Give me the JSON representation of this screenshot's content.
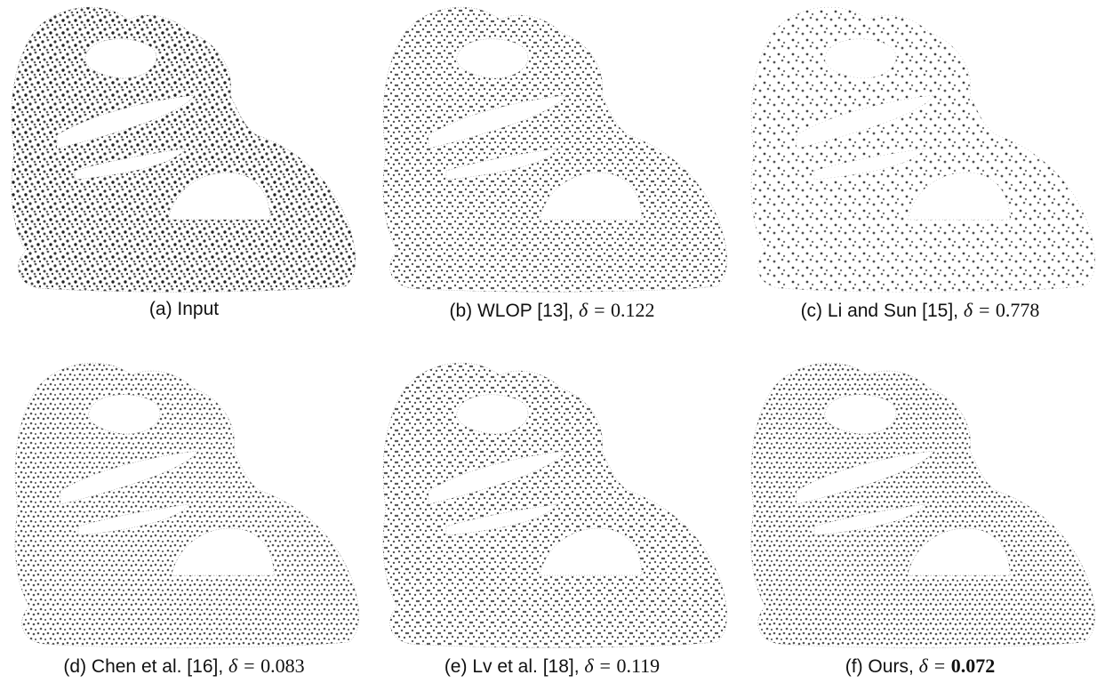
{
  "figure": {
    "panels": [
      {
        "label": "(a) Input"
      },
      {
        "label": "(b) WLOP [13],",
        "delta_lhs": "δ =",
        "delta": "0.122"
      },
      {
        "label": "(c) Li and Sun [15],",
        "delta_lhs": "δ =",
        "delta": "0.778"
      },
      {
        "label": "(d) Chen et al. [16],",
        "delta_lhs": "δ =",
        "delta": "0.083"
      },
      {
        "label": "(e) Lv et al. [18],",
        "delta_lhs": "δ =",
        "delta": "0.119"
      },
      {
        "label": "(f) Ours,",
        "delta_lhs": "δ =",
        "delta": "0.072"
      }
    ]
  }
}
